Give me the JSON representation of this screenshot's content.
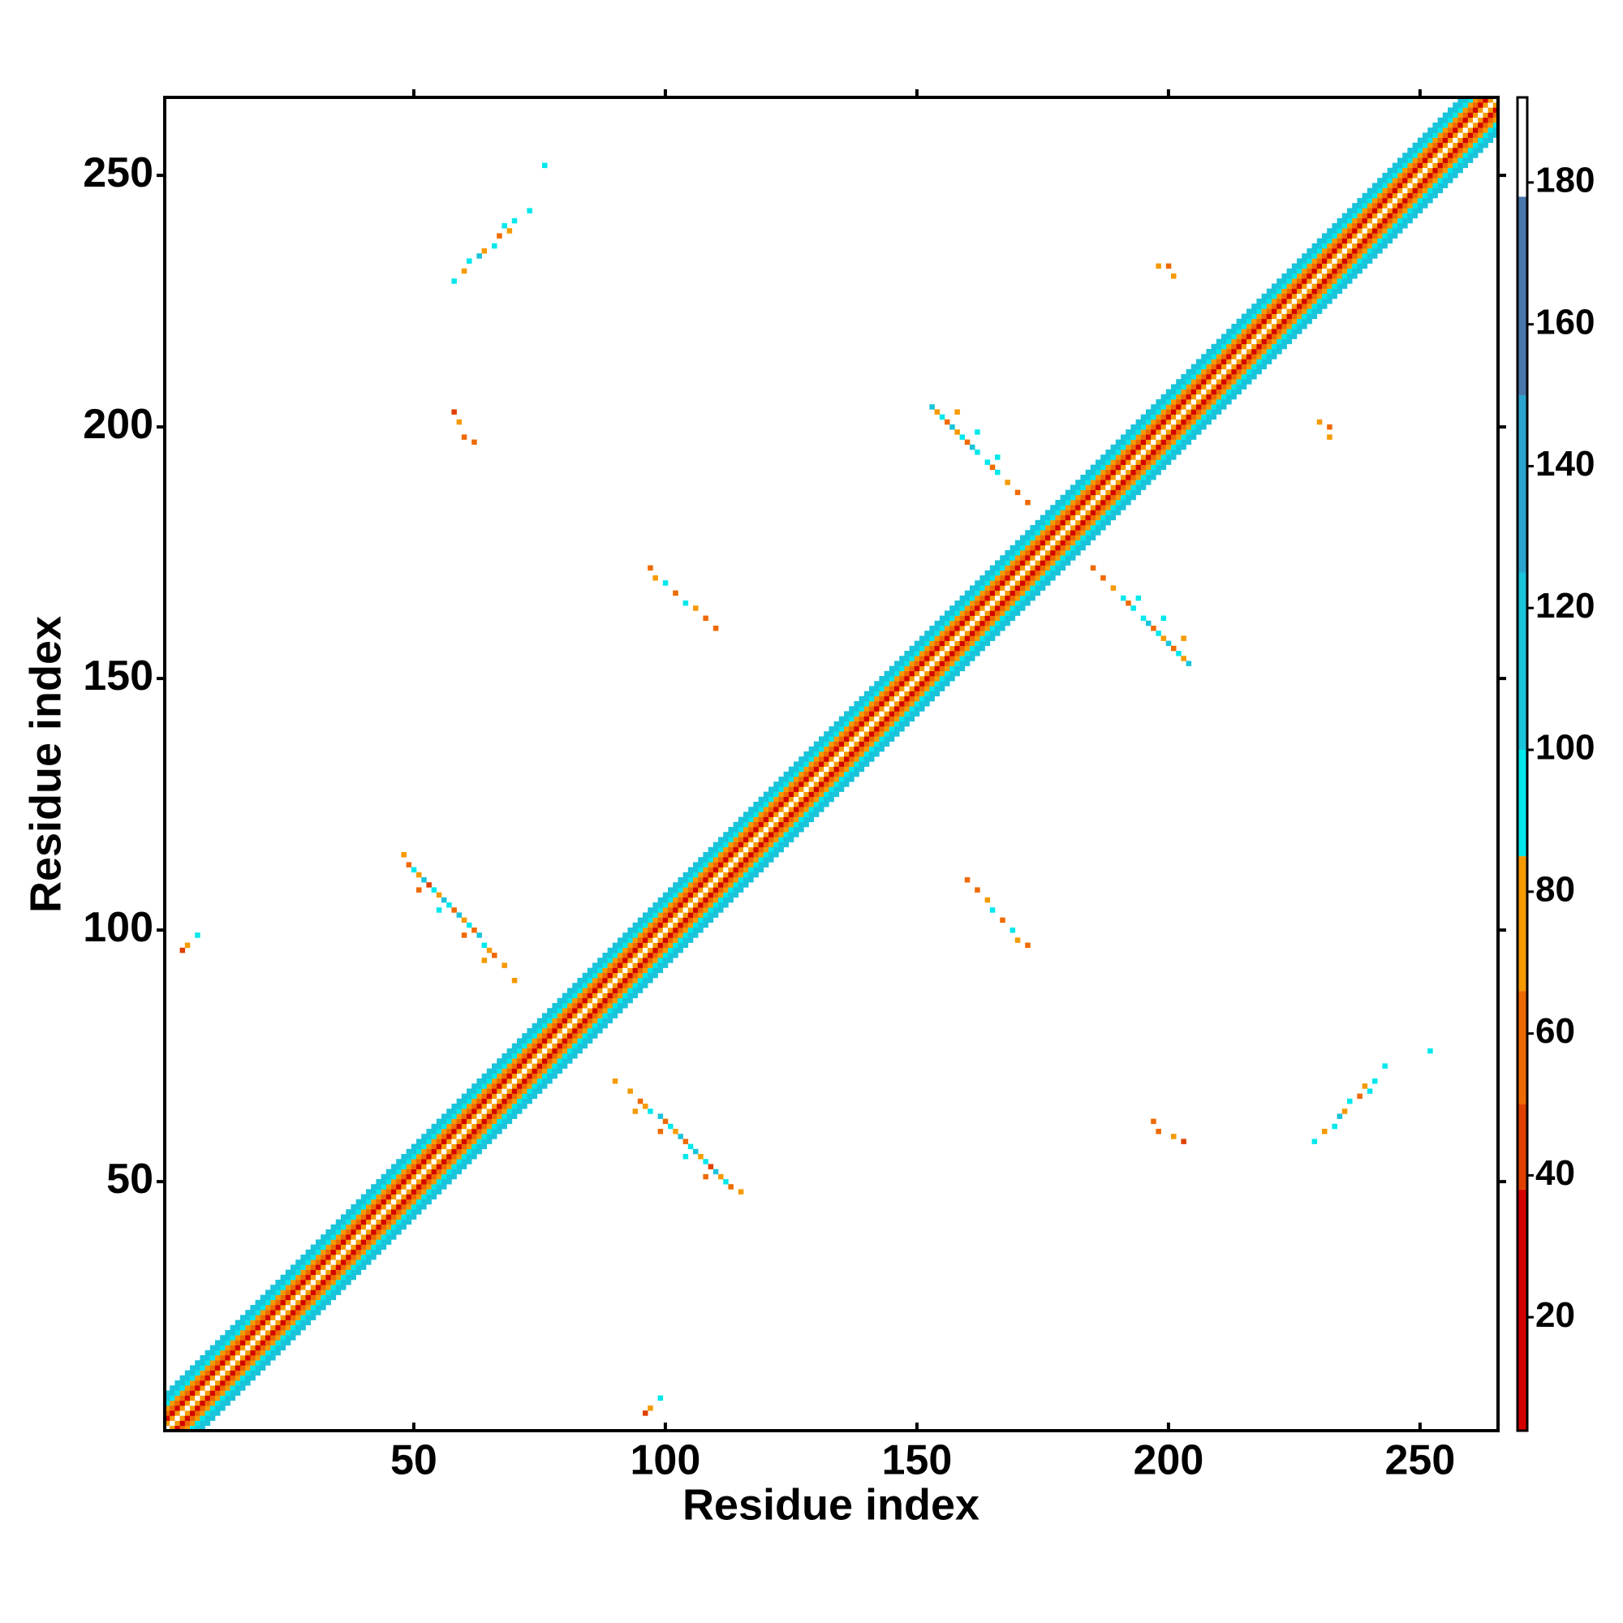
{
  "chart_data": {
    "type": "heatmap",
    "xlabel": "Residue index",
    "ylabel": "Residue index",
    "xlim": [
      0.5,
      265.5
    ],
    "ylim": [
      0.5,
      265.5
    ],
    "xticks": [
      50,
      100,
      150,
      200,
      250
    ],
    "yticks": [
      50,
      100,
      150,
      200,
      250
    ],
    "clim": [
      4,
      192
    ],
    "cticks": [
      20,
      40,
      60,
      80,
      100,
      120,
      140,
      160,
      180
    ],
    "colorbar": [
      {
        "from": 4,
        "to": 38,
        "color": "#d40000"
      },
      {
        "from": 38,
        "to": 50,
        "color": "#e04000"
      },
      {
        "from": 50,
        "to": 66,
        "color": "#ee6a00"
      },
      {
        "from": 66,
        "to": 85,
        "color": "#f59a00"
      },
      {
        "from": 85,
        "to": 100,
        "color": "#00e8ec"
      },
      {
        "from": 100,
        "to": 125,
        "color": "#19c4da"
      },
      {
        "from": 125,
        "to": 150,
        "color": "#2aa5cf"
      },
      {
        "from": 150,
        "to": 178,
        "color": "#4a78ac"
      },
      {
        "from": 178,
        "to": 192,
        "color": "#ffffff"
      }
    ],
    "diagonal": {
      "offsets": [
        0,
        1,
        2,
        3,
        4,
        5,
        6,
        7
      ],
      "values": [
        190,
        70,
        30,
        55,
        75,
        95,
        105,
        120
      ]
    },
    "cells": [
      [
        48,
        115,
        70
      ],
      [
        49,
        113,
        60
      ],
      [
        50,
        112,
        90
      ],
      [
        51,
        111,
        70
      ],
      [
        52,
        110,
        110
      ],
      [
        53,
        109,
        50
      ],
      [
        54,
        108,
        100
      ],
      [
        55,
        107,
        70
      ],
      [
        56,
        106,
        110
      ],
      [
        57,
        105,
        95
      ],
      [
        58,
        104,
        60
      ],
      [
        59,
        103,
        120
      ],
      [
        60,
        102,
        70
      ],
      [
        61,
        101,
        100
      ],
      [
        62,
        100,
        55
      ],
      [
        63,
        99,
        110
      ],
      [
        64,
        97,
        95
      ],
      [
        65,
        96,
        70
      ],
      [
        66,
        95,
        60
      ],
      [
        68,
        93,
        75
      ],
      [
        70,
        90,
        80
      ],
      [
        51,
        108,
        60
      ],
      [
        55,
        104,
        95
      ],
      [
        60,
        99,
        60
      ],
      [
        64,
        94,
        70
      ],
      [
        153,
        204,
        110
      ],
      [
        154,
        203,
        70
      ],
      [
        155,
        202,
        95
      ],
      [
        156,
        201,
        60
      ],
      [
        157,
        200,
        110
      ],
      [
        158,
        199,
        75
      ],
      [
        159,
        198,
        100
      ],
      [
        160,
        197,
        60
      ],
      [
        161,
        196,
        110
      ],
      [
        162,
        195,
        95
      ],
      [
        164,
        193,
        100
      ],
      [
        165,
        192,
        55
      ],
      [
        166,
        191,
        95
      ],
      [
        168,
        189,
        70
      ],
      [
        170,
        187,
        60
      ],
      [
        172,
        185,
        65
      ],
      [
        158,
        203,
        70
      ],
      [
        162,
        199,
        100
      ],
      [
        166,
        194,
        95
      ],
      [
        58,
        229,
        95
      ],
      [
        60,
        231,
        70
      ],
      [
        61,
        233,
        95
      ],
      [
        63,
        234,
        110
      ],
      [
        64,
        235,
        70
      ],
      [
        66,
        236,
        95
      ],
      [
        67,
        238,
        60
      ],
      [
        69,
        239,
        75
      ],
      [
        70,
        241,
        95
      ],
      [
        73,
        243,
        100
      ],
      [
        76,
        252,
        100
      ],
      [
        68,
        240,
        90
      ],
      [
        4,
        96,
        50
      ],
      [
        5,
        97,
        70
      ],
      [
        7,
        99,
        100
      ],
      [
        58,
        203,
        50
      ],
      [
        59,
        201,
        70
      ],
      [
        60,
        198,
        55
      ],
      [
        62,
        197,
        60
      ],
      [
        97,
        172,
        55
      ],
      [
        98,
        170,
        70
      ],
      [
        100,
        169,
        95
      ],
      [
        102,
        167,
        60
      ],
      [
        104,
        165,
        100
      ],
      [
        106,
        164,
        75
      ],
      [
        108,
        162,
        60
      ],
      [
        110,
        160,
        55
      ],
      [
        198,
        232,
        70
      ],
      [
        200,
        232,
        60
      ],
      [
        201,
        230,
        70
      ]
    ]
  }
}
